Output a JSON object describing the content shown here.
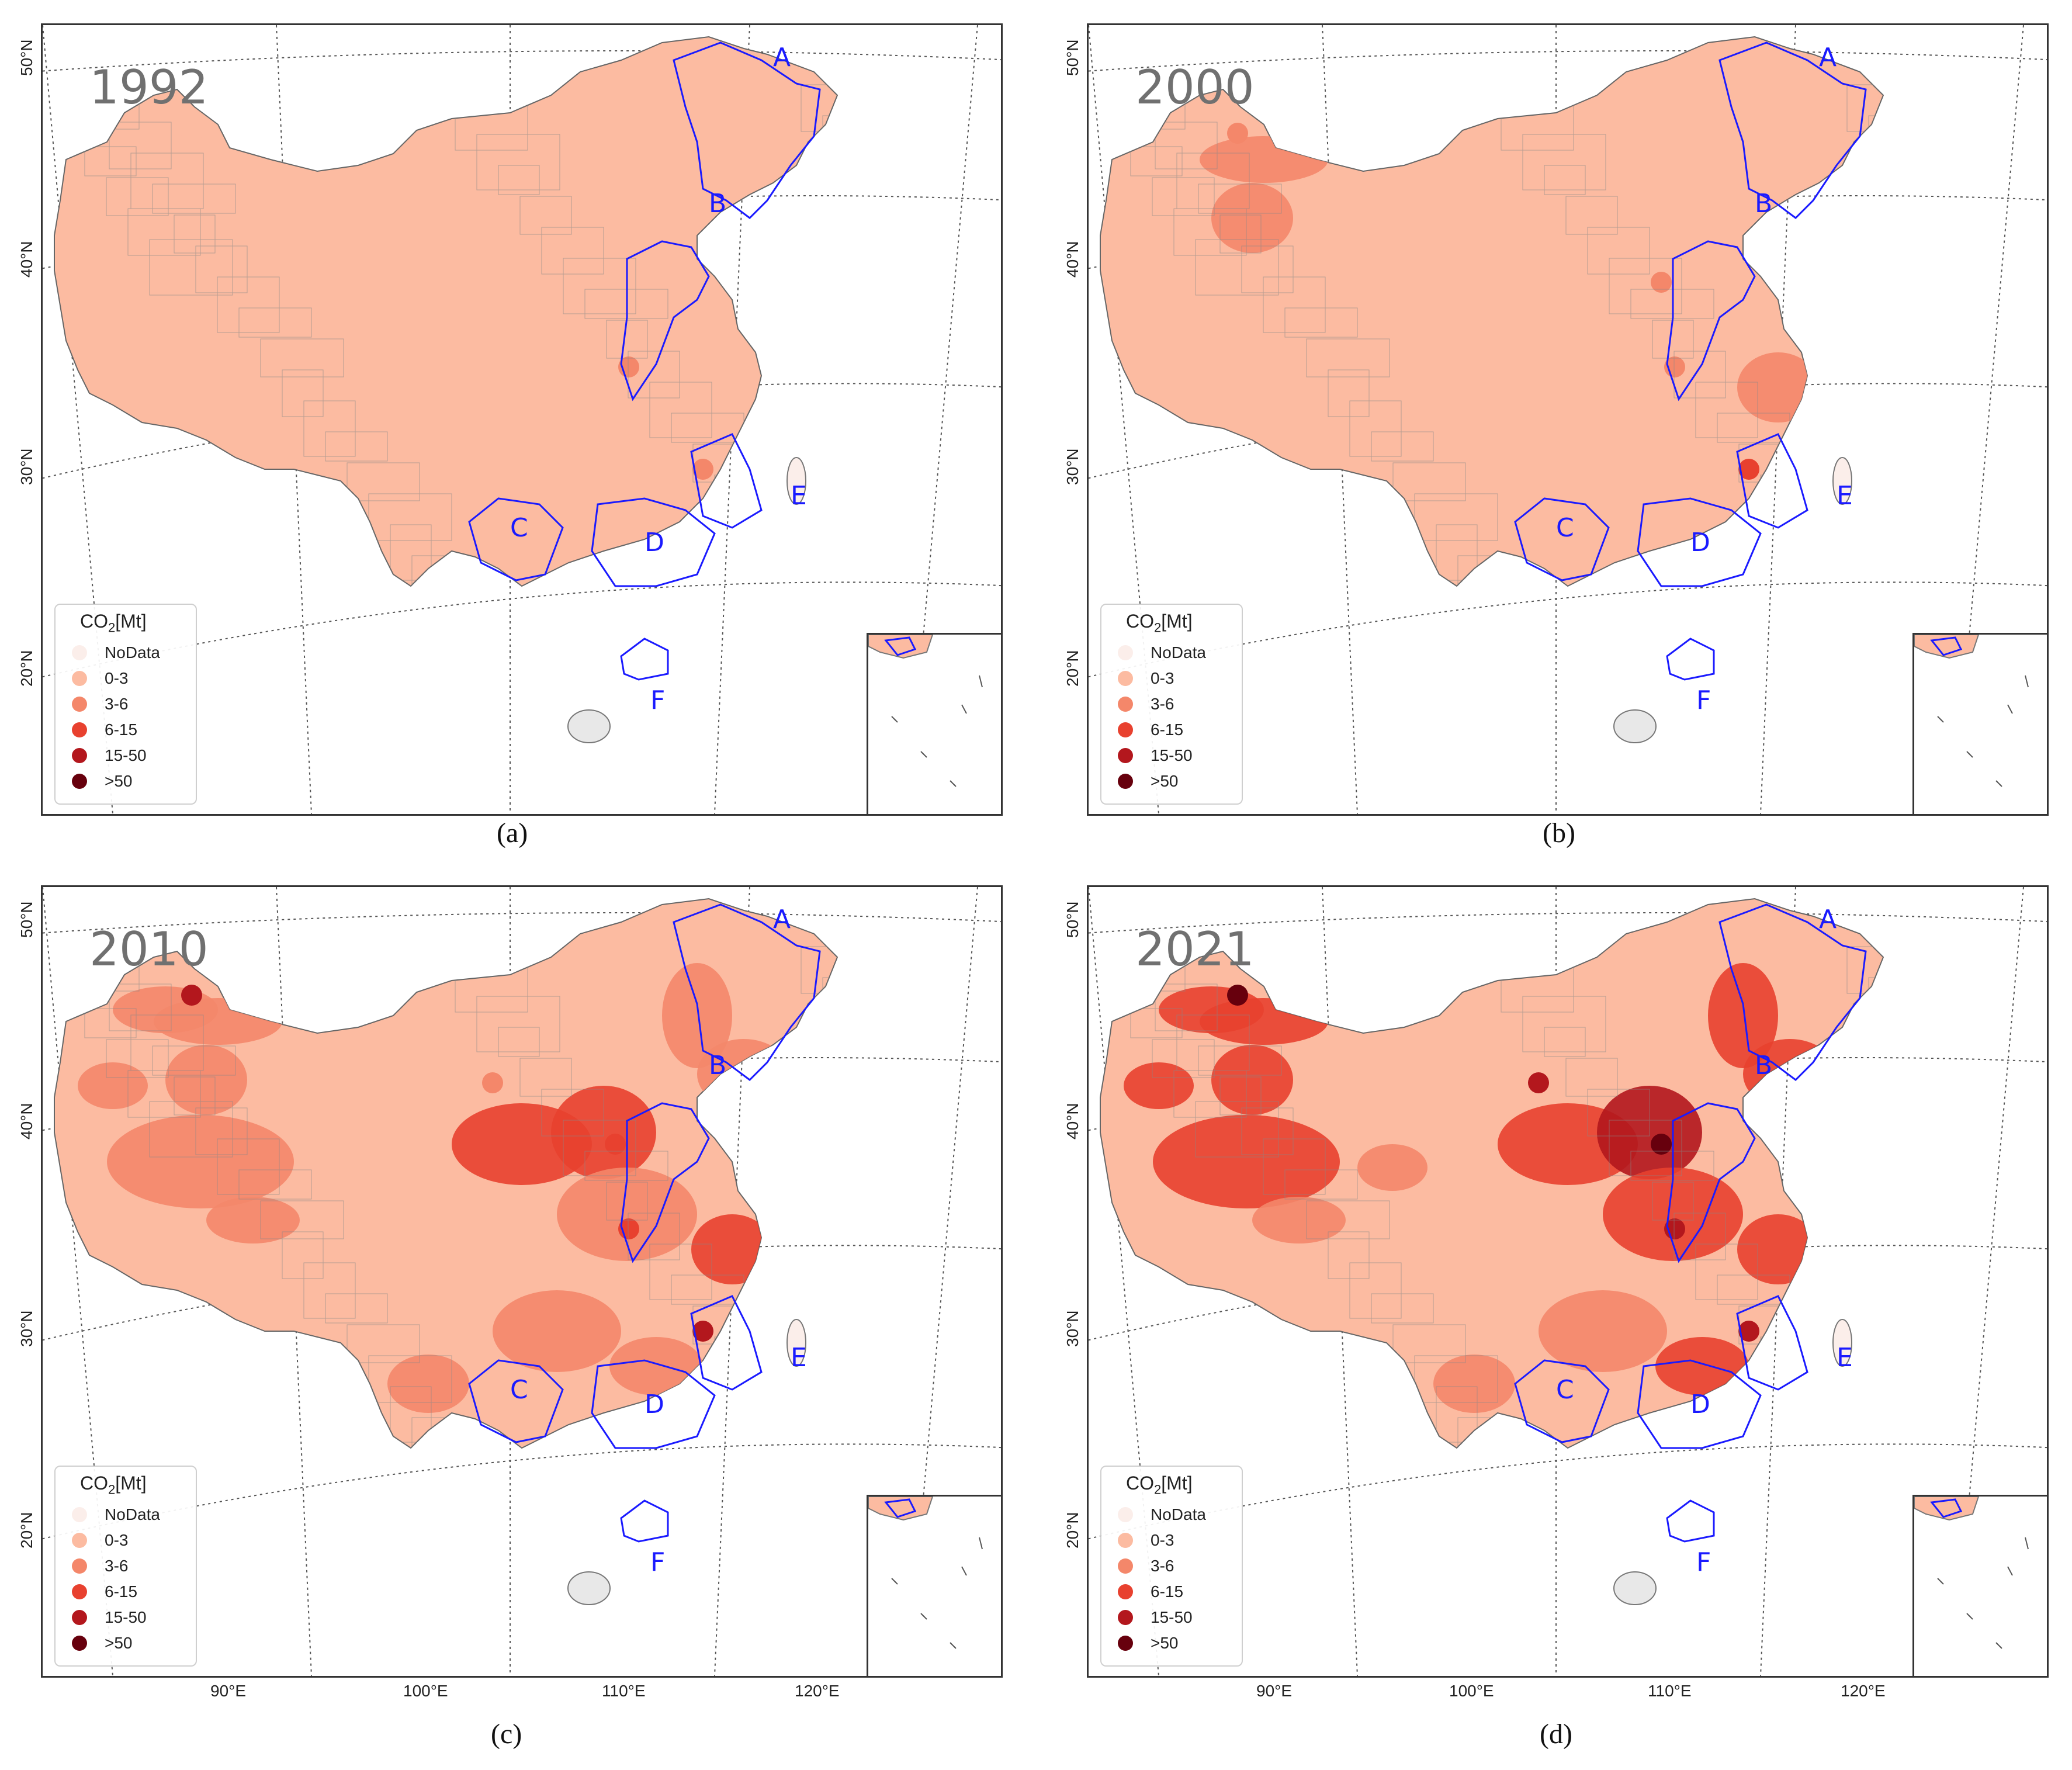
{
  "panels": [
    {
      "year": "1992",
      "caption": "(a)"
    },
    {
      "year": "2000",
      "caption": "(b)"
    },
    {
      "year": "2010",
      "caption": "(c)"
    },
    {
      "year": "2021",
      "caption": "(d)"
    }
  ],
  "legend": {
    "title_main": "CO",
    "title_sub": "2",
    "title_unit": "[Mt]",
    "items": [
      {
        "label": "NoData",
        "color": "#fbeeea"
      },
      {
        "label": "0-3",
        "color": "#fcbba1"
      },
      {
        "label": "3-6",
        "color": "#f4876a"
      },
      {
        "label": "6-15",
        "color": "#e8412f"
      },
      {
        "label": "15-50",
        "color": "#b3171d"
      },
      {
        "label": ">50",
        "color": "#67000d"
      }
    ]
  },
  "regions": [
    "A",
    "B",
    "C",
    "D",
    "E",
    "F"
  ],
  "lat_labels": [
    "50°N",
    "40°N",
    "30°N",
    "20°N"
  ],
  "lon_labels": [
    "90°E",
    "100°E",
    "110°E",
    "120°E"
  ]
}
